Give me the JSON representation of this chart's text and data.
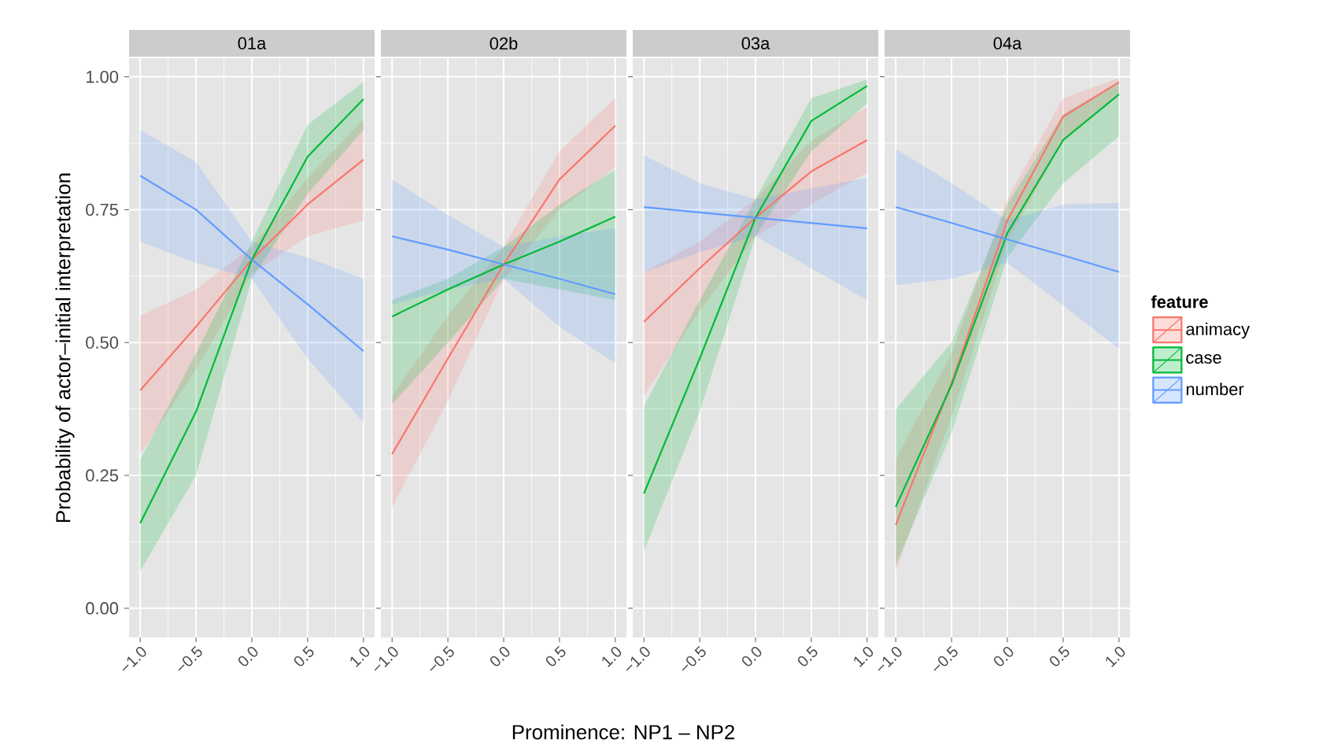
{
  "chart_data": [
    {
      "type": "line",
      "title": "01a",
      "ylabel": "Probability of actor–initial interpretation",
      "grid": true,
      "x": [
        -1,
        -0.5,
        0,
        0.5,
        1
      ],
      "xlim": [
        -1.1,
        1.1
      ],
      "ylim": [
        -0.055,
        1.035
      ],
      "xticks": [
        {
          "value": -1,
          "label": "−1.0"
        },
        {
          "value": -0.5,
          "label": "−0.5"
        },
        {
          "value": 0,
          "label": "0.0"
        },
        {
          "value": 0.5,
          "label": "0.5"
        },
        {
          "value": 1,
          "label": "1.0"
        }
      ],
      "yticks": [
        {
          "value": 0,
          "label": "0.00"
        },
        {
          "value": 0.25,
          "label": "0.25"
        },
        {
          "value": 0.5,
          "label": "0.50"
        },
        {
          "value": 0.75,
          "label": "0.75"
        },
        {
          "value": 1,
          "label": "1.00"
        }
      ],
      "series": [
        {
          "color": "#F8766D",
          "values": [
            0.41,
            0.53,
            0.656,
            0.76,
            0.844
          ],
          "lower": [
            0.29,
            0.45,
            0.63,
            0.7,
            0.73
          ],
          "upper": [
            0.55,
            0.6,
            0.68,
            0.81,
            0.92
          ]
        },
        {
          "color": "#00BA38",
          "values": [
            0.16,
            0.37,
            0.656,
            0.85,
            0.958
          ],
          "lower": [
            0.07,
            0.25,
            0.62,
            0.78,
            0.9
          ],
          "upper": [
            0.28,
            0.48,
            0.69,
            0.91,
            0.99
          ]
        },
        {
          "color": "#619CFF",
          "values": [
            0.814,
            0.75,
            0.656,
            0.572,
            0.484
          ],
          "lower": [
            0.69,
            0.65,
            0.62,
            0.47,
            0.35
          ],
          "upper": [
            0.9,
            0.84,
            0.69,
            0.66,
            0.62
          ]
        }
      ]
    },
    {
      "type": "line",
      "title": "02b",
      "xlabel": "Prominence: NP1 – NP2",
      "grid": true,
      "tick_labels": "x",
      "x": [
        -1,
        -0.5,
        0,
        0.5,
        1
      ],
      "xlim": [
        -1.1,
        1.1
      ],
      "ylim": [
        -0.055,
        1.035
      ],
      "xticks": [
        {
          "value": -1,
          "label": "−1.0"
        },
        {
          "value": -0.5,
          "label": "−0.5"
        },
        {
          "value": 0,
          "label": "0.0"
        },
        {
          "value": 0.5,
          "label": "0.5"
        },
        {
          "value": 1,
          "label": "1.0"
        }
      ],
      "yticks": [
        0,
        0.25,
        0.5,
        0.75,
        1
      ],
      "series": [
        {
          "color": "#F8766D",
          "values": [
            0.29,
            0.47,
            0.647,
            0.807,
            0.908
          ],
          "lower": [
            0.19,
            0.39,
            0.62,
            0.75,
            0.83
          ],
          "upper": [
            0.4,
            0.55,
            0.68,
            0.86,
            0.96
          ]
        },
        {
          "color": "#00BA38",
          "values": [
            0.549,
            0.6,
            0.647,
            0.69,
            0.737
          ],
          "lower": [
            0.384,
            0.5,
            0.62,
            0.6,
            0.58
          ],
          "upper": [
            0.58,
            0.62,
            0.68,
            0.76,
            0.825
          ]
        },
        {
          "color": "#619CFF",
          "values": [
            0.7,
            0.675,
            0.647,
            0.62,
            0.591
          ],
          "lower": [
            0.572,
            0.6,
            0.62,
            0.53,
            0.461
          ],
          "upper": [
            0.807,
            0.74,
            0.68,
            0.7,
            0.715
          ]
        }
      ]
    },
    {
      "type": "line",
      "title": "03a",
      "grid": true,
      "tick_labels": "x",
      "x": [
        -1,
        -0.5,
        0,
        0.5,
        1
      ],
      "xlim": [
        -1.1,
        1.1
      ],
      "ylim": [
        -0.055,
        1.035
      ],
      "xticks": [
        {
          "value": -1,
          "label": "−1.0"
        },
        {
          "value": -0.5,
          "label": "−0.5"
        },
        {
          "value": 0,
          "label": "0.0"
        },
        {
          "value": 0.5,
          "label": "0.5"
        },
        {
          "value": 1,
          "label": "1.0"
        }
      ],
      "yticks": [
        0,
        0.25,
        0.5,
        0.75,
        1
      ],
      "series": [
        {
          "color": "#F8766D",
          "values": [
            0.539,
            0.64,
            0.735,
            0.822,
            0.881
          ],
          "lower": [
            0.4,
            0.56,
            0.7,
            0.76,
            0.82
          ],
          "upper": [
            0.632,
            0.69,
            0.77,
            0.88,
            0.943
          ]
        },
        {
          "color": "#00BA38",
          "values": [
            0.216,
            0.47,
            0.735,
            0.917,
            0.983
          ],
          "lower": [
            0.107,
            0.37,
            0.7,
            0.86,
            0.95
          ],
          "upper": [
            0.38,
            0.58,
            0.77,
            0.96,
            0.995
          ]
        },
        {
          "color": "#619CFF",
          "values": [
            0.755,
            0.745,
            0.735,
            0.725,
            0.715
          ],
          "lower": [
            0.632,
            0.67,
            0.7,
            0.64,
            0.58
          ],
          "upper": [
            0.852,
            0.8,
            0.77,
            0.79,
            0.81
          ]
        }
      ]
    },
    {
      "type": "line",
      "title": "04a",
      "grid": true,
      "tick_labels": "x",
      "legend": "right",
      "legend_title": "feature",
      "x": [
        -1,
        -0.5,
        0,
        0.5,
        1
      ],
      "xlim": [
        -1.1,
        1.1
      ],
      "ylim": [
        -0.055,
        1.035
      ],
      "xticks": [
        {
          "value": -1,
          "label": "−1.0"
        },
        {
          "value": -0.5,
          "label": "−0.5"
        },
        {
          "value": 0,
          "label": "0.0"
        },
        {
          "value": 0.5,
          "label": "0.5"
        },
        {
          "value": 1,
          "label": "1.0"
        }
      ],
      "yticks": [
        0,
        0.25,
        0.5,
        0.75,
        1
      ],
      "series": [
        {
          "name": "animacy",
          "color": "#F8766D",
          "values": [
            0.157,
            0.424,
            0.73,
            0.925,
            0.99
          ],
          "lower": [
            0.07,
            0.36,
            0.69,
            0.88,
            0.97
          ],
          "upper": [
            0.28,
            0.48,
            0.77,
            0.96,
            0.998
          ]
        },
        {
          "name": "case",
          "color": "#00BA38",
          "values": [
            0.191,
            0.42,
            0.706,
            0.881,
            0.967
          ],
          "lower": [
            0.08,
            0.33,
            0.66,
            0.8,
            0.888
          ],
          "upper": [
            0.374,
            0.5,
            0.76,
            0.93,
            0.99
          ]
        },
        {
          "name": "number",
          "color": "#619CFF",
          "values": [
            0.755,
            0.725,
            0.694,
            0.664,
            0.633
          ],
          "lower": [
            0.608,
            0.62,
            0.65,
            0.57,
            0.488
          ],
          "upper": [
            0.864,
            0.8,
            0.73,
            0.76,
            0.763
          ]
        }
      ]
    }
  ]
}
